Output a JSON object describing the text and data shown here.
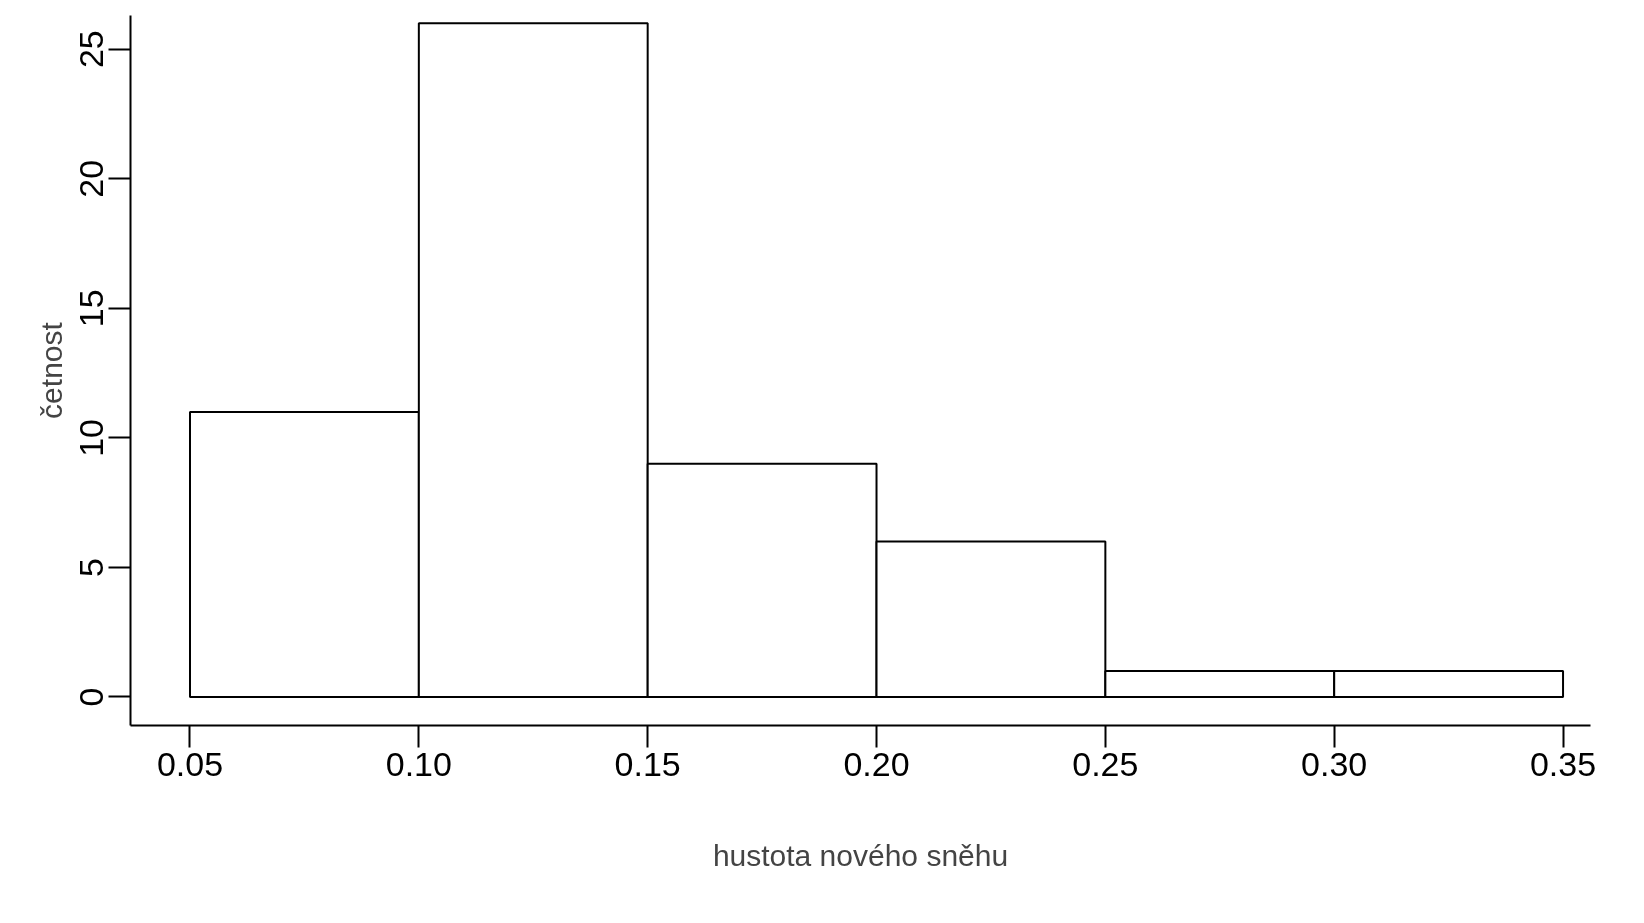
{
  "chart_data": {
    "type": "histogram",
    "xlabel": "hustota nového sněhu",
    "ylabel": "četnost",
    "bins": [
      0.05,
      0.1,
      0.15,
      0.2,
      0.25,
      0.3,
      0.35
    ],
    "values": [
      11,
      26,
      9,
      6,
      1,
      1
    ],
    "color": "#ffffff",
    "xlim": [
      0.037,
      0.356
    ],
    "ylim": [
      -1.1,
      26.3
    ],
    "xticks": [
      {
        "value": 0.05,
        "label": "0.05"
      },
      {
        "value": 0.1,
        "label": "0.10"
      },
      {
        "value": 0.15,
        "label": "0.15"
      },
      {
        "value": 0.2,
        "label": "0.20"
      },
      {
        "value": 0.25,
        "label": "0.25"
      },
      {
        "value": 0.3,
        "label": "0.30"
      },
      {
        "value": 0.35,
        "label": "0.35"
      }
    ],
    "yticks": [
      0,
      5,
      10,
      15,
      20,
      25
    ],
    "grid": false
  }
}
